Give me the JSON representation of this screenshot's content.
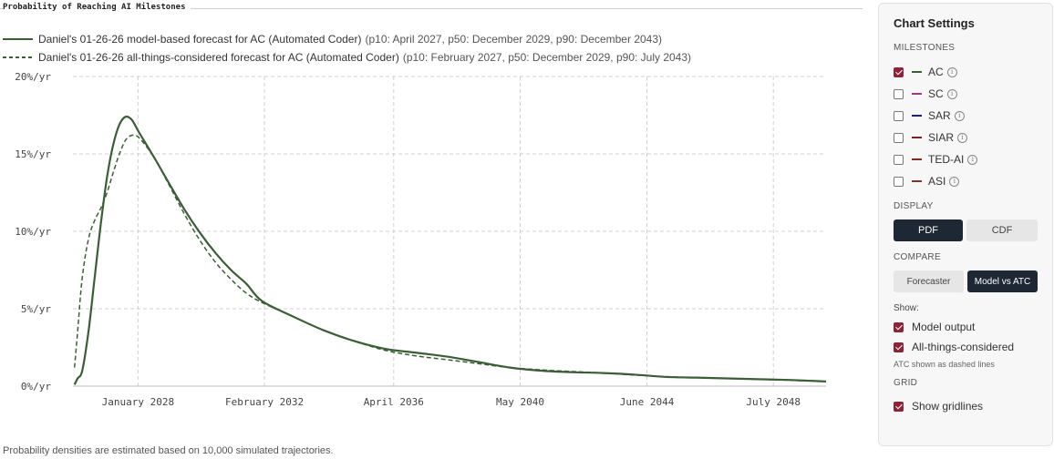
{
  "chart_data": {
    "type": "line",
    "title": "Probability of Reaching AI Milestones",
    "ylabel": "",
    "xlabel": "",
    "y_ticks": [
      "0%/yr",
      "5%/yr",
      "10%/yr",
      "15%/yr",
      "20%/yr"
    ],
    "y_tick_values": [
      0,
      5,
      10,
      15,
      20
    ],
    "ylim": [
      0,
      20
    ],
    "x_ticks": [
      "January 2028",
      "February 2032",
      "April 2036",
      "May 2040",
      "June 2044",
      "July 2048"
    ],
    "x_tick_values": [
      2028.0,
      2032.08,
      2036.25,
      2040.33,
      2044.42,
      2048.5
    ],
    "xlim": [
      2025.9,
      2050.2
    ],
    "grid": true,
    "series": [
      {
        "name": "Daniel's 01-26-26 model-based forecast for AC (Automated Coder)",
        "stats": "(p10: April 2027, p50: December 2029, p90: December 2043)",
        "style": "solid",
        "color": "#3b5e36",
        "x": [
          2025.95,
          2026.05,
          2026.2,
          2026.4,
          2026.6,
          2026.8,
          2027.0,
          2027.2,
          2027.4,
          2027.6,
          2027.8,
          2028.0,
          2028.3,
          2028.6,
          2029.0,
          2029.5,
          2030.0,
          2030.5,
          2031.0,
          2031.5,
          2032.0,
          2033.0,
          2034.0,
          2035.0,
          2036.0,
          2037.0,
          2038.0,
          2039.0,
          2040.0,
          2041.0,
          2042.0,
          2043.0,
          2044.0,
          2045.0,
          2046.0,
          2047.0,
          2048.0,
          2049.0,
          2050.2
        ],
        "y": [
          0.1,
          0.5,
          1.0,
          3.5,
          7.0,
          10.5,
          13.5,
          15.6,
          16.9,
          17.4,
          17.2,
          16.5,
          15.5,
          14.5,
          13.1,
          11.4,
          9.9,
          8.6,
          7.5,
          6.6,
          5.5,
          4.5,
          3.6,
          2.9,
          2.4,
          2.15,
          1.9,
          1.55,
          1.2,
          1.0,
          0.9,
          0.85,
          0.75,
          0.6,
          0.55,
          0.5,
          0.45,
          0.4,
          0.3
        ]
      },
      {
        "name": "Daniel's 01-26-26 all-things-considered forecast for AC (Automated Coder)",
        "stats": "(p10: February 2027, p50: December 2029, p90: July 2043)",
        "style": "dashed",
        "color": "#3b5e36",
        "x": [
          2025.95,
          2026.05,
          2026.2,
          2026.4,
          2026.6,
          2026.8,
          2027.0,
          2027.2,
          2027.4,
          2027.6,
          2027.8,
          2028.0,
          2028.3,
          2028.6,
          2029.0,
          2029.5,
          2030.0,
          2030.5,
          2031.0,
          2031.5,
          2032.0,
          2033.0,
          2034.0,
          2035.0,
          2036.0,
          2037.0,
          2038.0,
          2039.0,
          2040.0,
          2041.0,
          2042.0,
          2043.0,
          2044.0,
          2045.0,
          2046.0,
          2047.0,
          2048.0,
          2049.0,
          2050.2
        ],
        "y": [
          1.2,
          3.5,
          7.0,
          9.5,
          10.7,
          11.5,
          12.5,
          13.8,
          15.0,
          15.9,
          16.2,
          16.1,
          15.4,
          14.5,
          13.0,
          11.1,
          9.4,
          8.0,
          6.9,
          6.0,
          5.4,
          4.5,
          3.6,
          2.9,
          2.3,
          1.95,
          1.7,
          1.45,
          1.2,
          1.05,
          0.95,
          0.85,
          0.72,
          0.62,
          0.55,
          0.5,
          0.44,
          0.38,
          0.3
        ]
      }
    ]
  },
  "footnote": "Probability densities are estimated based on 10,000 simulated trajectories.",
  "settings": {
    "title": "Chart Settings",
    "milestones_label": "MILESTONES",
    "milestones": [
      {
        "label": "AC",
        "checked": true,
        "color": "#3b5e36"
      },
      {
        "label": "SC",
        "checked": false,
        "color": "#9b3a8a"
      },
      {
        "label": "SAR",
        "checked": false,
        "color": "#1f1f7a"
      },
      {
        "label": "SIAR",
        "checked": false,
        "color": "#7a1f2a"
      },
      {
        "label": "TED-AI",
        "checked": false,
        "color": "#8a2a22"
      },
      {
        "label": "ASI",
        "checked": false,
        "color": "#7a3a2a"
      }
    ],
    "info_glyph": "i",
    "display_label": "DISPLAY",
    "display_options": [
      "PDF",
      "CDF"
    ],
    "display_selected": "PDF",
    "compare_label": "COMPARE",
    "compare_options": [
      "Forecaster",
      "Model vs ATC"
    ],
    "compare_selected": "Model vs ATC",
    "show_label": "Show:",
    "show_model_output": "Model output",
    "show_atc": "All-things-considered",
    "atc_note": "ATC shown as dashed lines",
    "grid_label": "GRID",
    "show_gridlines": "Show gridlines"
  },
  "colors": {
    "series": "#3b5e36",
    "grid": "#d0d0d0",
    "checkbox_checked": "#8b2339",
    "button_dark": "#1e2734"
  }
}
